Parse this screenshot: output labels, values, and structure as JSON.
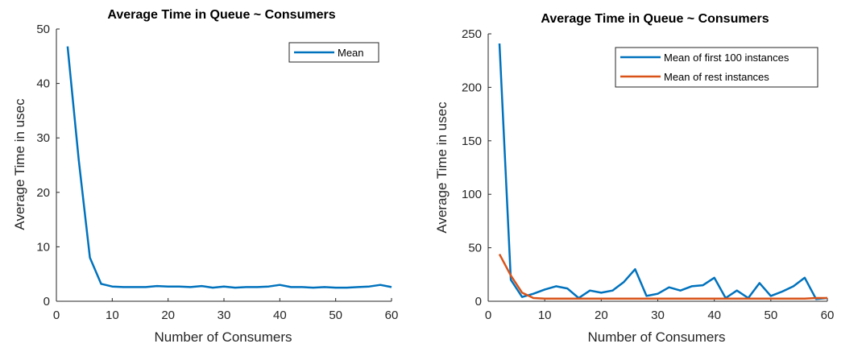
{
  "chart_data": [
    {
      "type": "line",
      "title": "Average Time in Queue ~ Consumers",
      "xlabel": "Number of Consumers",
      "ylabel": "Average Time in usec",
      "xlim": [
        0,
        60
      ],
      "ylim": [
        0,
        50
      ],
      "xticks": [
        0,
        10,
        20,
        30,
        40,
        50,
        60
      ],
      "yticks": [
        0,
        10,
        20,
        30,
        40,
        50
      ],
      "legend_position": "top-right",
      "grid": false,
      "series": [
        {
          "name": "Mean",
          "color": "#0072BD",
          "x": [
            2,
            4,
            6,
            8,
            10,
            12,
            14,
            16,
            18,
            20,
            22,
            24,
            26,
            28,
            30,
            32,
            34,
            36,
            38,
            40,
            42,
            44,
            46,
            48,
            50,
            52,
            54,
            56,
            58,
            60
          ],
          "y": [
            46.8,
            26,
            8,
            3.2,
            2.7,
            2.6,
            2.6,
            2.6,
            2.8,
            2.7,
            2.7,
            2.6,
            2.8,
            2.5,
            2.7,
            2.5,
            2.6,
            2.6,
            2.7,
            3.0,
            2.6,
            2.6,
            2.5,
            2.6,
            2.5,
            2.5,
            2.6,
            2.7,
            3.0,
            2.6
          ]
        }
      ]
    },
    {
      "type": "line",
      "title": "Average Time in Queue ~ Consumers",
      "xlabel": "Number of Consumers",
      "ylabel": "Average Time in usec",
      "xlim": [
        0,
        60
      ],
      "ylim": [
        0,
        250
      ],
      "xticks": [
        0,
        10,
        20,
        30,
        40,
        50,
        60
      ],
      "yticks": [
        0,
        50,
        100,
        150,
        200,
        250
      ],
      "legend_position": "top-right",
      "grid": false,
      "series": [
        {
          "name": "Mean of first 100 instances",
          "color": "#0072BD",
          "x": [
            2,
            4,
            6,
            8,
            10,
            12,
            14,
            16,
            18,
            20,
            22,
            24,
            26,
            28,
            30,
            32,
            34,
            36,
            38,
            40,
            42,
            44,
            46,
            48,
            50,
            52,
            54,
            56,
            58,
            60
          ],
          "y": [
            241,
            20,
            4,
            7,
            11,
            14,
            12,
            3,
            10,
            8,
            10,
            18,
            30,
            5,
            7,
            13,
            10,
            14,
            15,
            22,
            3,
            10,
            3,
            17,
            5,
            9,
            14,
            22,
            2,
            3
          ]
        },
        {
          "name": "Mean of rest instances",
          "color": "#D95319",
          "x": [
            2,
            4,
            6,
            8,
            10,
            12,
            14,
            16,
            18,
            20,
            22,
            24,
            26,
            28,
            30,
            32,
            34,
            36,
            38,
            40,
            42,
            44,
            46,
            48,
            50,
            52,
            54,
            56,
            58,
            60
          ],
          "y": [
            44,
            24,
            8,
            3,
            2.5,
            2.5,
            2.5,
            2.5,
            2.5,
            2.5,
            2.5,
            2.5,
            2.5,
            2.5,
            2.5,
            2.5,
            2.5,
            2.5,
            2.5,
            2.5,
            2.5,
            2.5,
            2.5,
            2.5,
            2.5,
            2.5,
            2.5,
            2.5,
            3,
            3
          ]
        }
      ]
    }
  ]
}
